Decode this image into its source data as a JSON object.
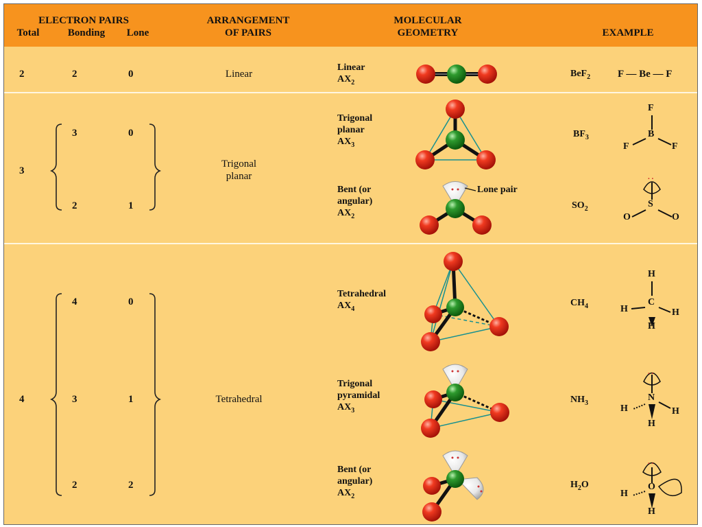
{
  "header": {
    "electron_pairs": "ELECTRON PAIRS",
    "total": "Total",
    "bonding": "Bonding",
    "lone": "Lone",
    "arrangement_line1": "ARRANGEMENT",
    "arrangement_line2": "OF PAIRS",
    "geometry_line1": "MOLECULAR",
    "geometry_line2": "GEOMETRY",
    "example": "EXAMPLE"
  },
  "rows": [
    {
      "total": "2",
      "bonding": "2",
      "lone": "0",
      "arrangement": "Linear",
      "geometry_name": "Linear",
      "geometry_ax": "AX",
      "geometry_sub": "2",
      "example_formula": "BeF",
      "example_sub": "2",
      "structure": {
        "text": "F — Be — F"
      }
    },
    {
      "total": "3",
      "bonding": "3",
      "lone": "0",
      "arrangement_line1": "Trigonal",
      "arrangement_line2": "planar",
      "geometry_name_line1": "Trigonal",
      "geometry_name_line2": "planar",
      "geometry_ax": "AX",
      "geometry_sub": "3",
      "example_formula": "BF",
      "example_sub": "3",
      "structure": {
        "center": "B",
        "top": "F",
        "left": "F",
        "right": "F"
      }
    },
    {
      "bonding": "2",
      "lone": "1",
      "geometry_name_line1": "Bent (or",
      "geometry_name_line2": "angular)",
      "geometry_ax": "AX",
      "geometry_sub": "2",
      "lone_pair_label": "Lone pair",
      "example_formula": "SO",
      "example_sub": "2",
      "structure": {
        "center": "S",
        "left": "O",
        "right": "O",
        "dots": ". ."
      }
    },
    {
      "total": "4",
      "bonding": "4",
      "lone": "0",
      "arrangement": "Tetrahedral",
      "geometry_name": "Tetrahedral",
      "geometry_ax": "AX",
      "geometry_sub": "4",
      "example_formula": "CH",
      "example_sub": "4",
      "structure": {
        "center": "C",
        "top": "H",
        "left": "H",
        "right": "H",
        "bottom": "H"
      }
    },
    {
      "bonding": "3",
      "lone": "1",
      "geometry_name_line1": "Trigonal",
      "geometry_name_line2": "pyramidal",
      "geometry_ax": "AX",
      "geometry_sub": "3",
      "example_formula": "NH",
      "example_sub": "3",
      "structure": {
        "center": "N",
        "left": "H",
        "right": "H",
        "bottom": "H",
        "dots": ". ."
      }
    },
    {
      "bonding": "2",
      "lone": "2",
      "geometry_name_line1": "Bent (or",
      "geometry_name_line2": "angular)",
      "geometry_ax": "AX",
      "geometry_sub": "2",
      "example_formula": "H",
      "example_sub": "2",
      "example_suffix": "O",
      "structure": {
        "center": "O",
        "left": "H",
        "bottom": "H",
        "dots": ". ."
      }
    }
  ],
  "colors": {
    "header_bg": "#f7931e",
    "body_bg": "#fcd27a",
    "outer_atom": "#e02010",
    "center_atom": "#1e8a1e",
    "lone_pair": "#e6e6e6",
    "edge": "#17908f"
  }
}
